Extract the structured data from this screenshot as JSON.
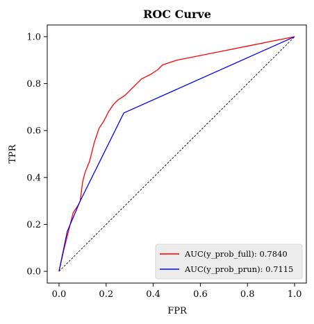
{
  "chart_data": {
    "type": "line",
    "title": "ROC Curve",
    "xlabel": "FPR",
    "ylabel": "TPR",
    "xlim": [
      -0.05,
      1.05
    ],
    "ylim": [
      -0.05,
      1.05
    ],
    "xticks": [
      0.0,
      0.2,
      0.4,
      0.6,
      0.8,
      1.0
    ],
    "yticks": [
      0.0,
      0.2,
      0.4,
      0.6,
      0.8,
      1.0
    ],
    "xtick_labels": [
      "0.0",
      "0.2",
      "0.4",
      "0.6",
      "0.8",
      "1.0"
    ],
    "ytick_labels": [
      "0.0",
      "0.2",
      "0.4",
      "0.6",
      "0.8",
      "1.0"
    ],
    "legend_position": "lower-right",
    "series": [
      {
        "name": "AUC(y_prob_full): 0.7840",
        "color": "#ff0000",
        "points": [
          [
            0.0,
            0.0
          ],
          [
            0.02,
            0.09
          ],
          [
            0.04,
            0.17
          ],
          [
            0.06,
            0.25
          ],
          [
            0.08,
            0.28
          ],
          [
            0.09,
            0.3
          ],
          [
            0.1,
            0.38
          ],
          [
            0.11,
            0.42
          ],
          [
            0.13,
            0.47
          ],
          [
            0.15,
            0.55
          ],
          [
            0.17,
            0.61
          ],
          [
            0.19,
            0.64
          ],
          [
            0.21,
            0.68
          ],
          [
            0.23,
            0.71
          ],
          [
            0.25,
            0.73
          ],
          [
            0.28,
            0.75
          ],
          [
            0.3,
            0.77
          ],
          [
            0.33,
            0.8
          ],
          [
            0.35,
            0.82
          ],
          [
            0.37,
            0.83
          ],
          [
            0.39,
            0.84
          ],
          [
            0.42,
            0.86
          ],
          [
            0.44,
            0.88
          ],
          [
            0.47,
            0.89
          ],
          [
            0.5,
            0.9
          ],
          [
            0.55,
            0.91
          ],
          [
            0.6,
            0.92
          ],
          [
            0.7,
            0.94
          ],
          [
            0.8,
            0.96
          ],
          [
            0.9,
            0.98
          ],
          [
            1.0,
            1.0
          ]
        ]
      },
      {
        "name": "AUC(y_prob_prun): 0.7115",
        "color": "#0000ff",
        "points": [
          [
            0.0,
            0.0
          ],
          [
            0.035,
            0.17
          ],
          [
            0.09,
            0.3
          ],
          [
            0.275,
            0.675
          ],
          [
            1.0,
            1.0
          ]
        ]
      }
    ],
    "reference_line": {
      "style": "dashed",
      "color": "#000000",
      "points": [
        [
          0.0,
          0.0
        ],
        [
          1.0,
          1.0
        ]
      ]
    }
  }
}
